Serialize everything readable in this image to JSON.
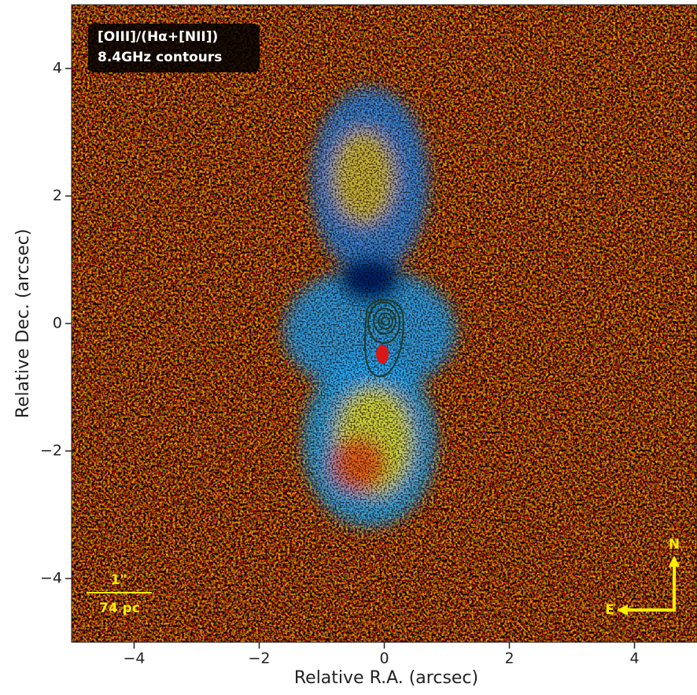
{
  "chart_data": {
    "type": "image",
    "x_label": "Relative R.A. (arcsec)",
    "y_label": "Relative Dec. (arcsec)",
    "xlim": [
      -5,
      5
    ],
    "ylim": [
      -5,
      5
    ],
    "xticks": [
      {
        "value": -4,
        "label": "−4"
      },
      {
        "value": -2,
        "label": "−2"
      },
      0,
      2,
      4
    ],
    "yticks": [
      {
        "value": -4,
        "label": "−4"
      },
      {
        "value": -2,
        "label": "−2"
      },
      0,
      2,
      4
    ],
    "annotations": {
      "map_title": "[OIII]/(Hα+[NII])",
      "contours_label": "8.4GHz contours",
      "scale_angle": "1\"",
      "scale_length": "74 pc",
      "north": "N",
      "east": "E"
    }
  }
}
